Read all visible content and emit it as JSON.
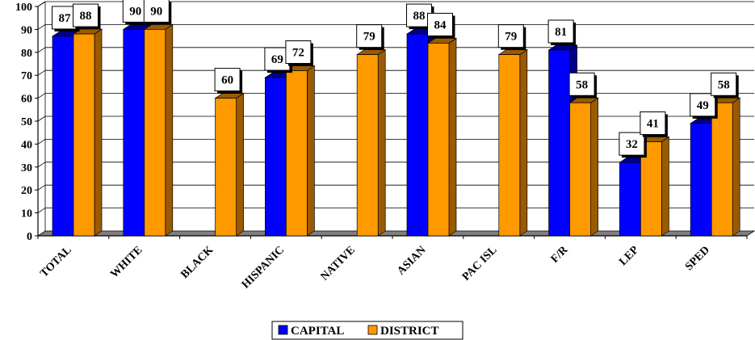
{
  "chart_data": {
    "type": "bar",
    "categories": [
      "TOTAL",
      "WHITE",
      "BLACK",
      "HISPANIC",
      "NATIVE",
      "ASIAN",
      "PAC ISL",
      "F/R",
      "LEP",
      "SPED"
    ],
    "series": [
      {
        "name": "CAPITAL",
        "values": [
          87,
          90,
          null,
          69,
          null,
          88,
          null,
          81,
          32,
          49
        ]
      },
      {
        "name": "DISTRICT",
        "values": [
          88,
          90,
          60,
          72,
          79,
          84,
          79,
          58,
          41,
          58
        ]
      }
    ],
    "ylim": [
      0,
      100
    ],
    "yticks": [
      0,
      10,
      20,
      30,
      40,
      50,
      60,
      70,
      80,
      90,
      100
    ],
    "legend_position": "bottom",
    "grid": true,
    "colors": {
      "CAPITAL": "#0000ff",
      "CAPITAL_side": "#00008b",
      "DISTRICT": "#ff9900",
      "DISTRICT_side": "#9a5b00",
      "floor": "#7f7f7f"
    }
  }
}
